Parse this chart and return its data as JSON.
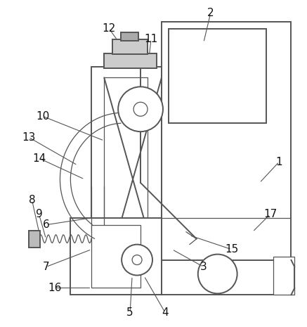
{
  "bg_color": "#ffffff",
  "line_color": "#555555",
  "lw": 1.4,
  "tlw": 0.9,
  "fig_width": 4.37,
  "fig_height": 4.65,
  "dpi": 100
}
